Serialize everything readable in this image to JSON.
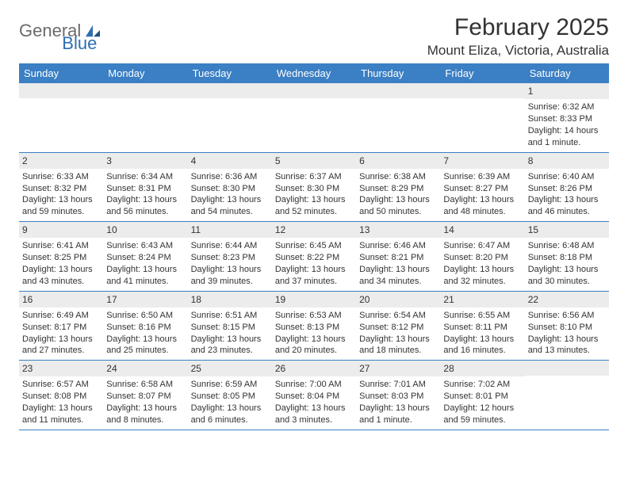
{
  "brand": {
    "part1": "General",
    "part2": "Blue"
  },
  "title": "February 2025",
  "location": "Mount Eliza, Victoria, Australia",
  "colors": {
    "header_bg": "#3b7fc4",
    "header_text": "#ffffff",
    "date_strip_bg": "#ececec",
    "text": "#333333",
    "rule": "#3b7fc4",
    "logo_gray": "#6b6b6b",
    "logo_blue": "#2f6fb0",
    "page_bg": "#ffffff"
  },
  "day_names": [
    "Sunday",
    "Monday",
    "Tuesday",
    "Wednesday",
    "Thursday",
    "Friday",
    "Saturday"
  ],
  "weeks": [
    [
      null,
      null,
      null,
      null,
      null,
      null,
      {
        "date": "1",
        "sunrise": "Sunrise: 6:32 AM",
        "sunset": "Sunset: 8:33 PM",
        "daylight": "Daylight: 14 hours and 1 minute."
      }
    ],
    [
      {
        "date": "2",
        "sunrise": "Sunrise: 6:33 AM",
        "sunset": "Sunset: 8:32 PM",
        "daylight": "Daylight: 13 hours and 59 minutes."
      },
      {
        "date": "3",
        "sunrise": "Sunrise: 6:34 AM",
        "sunset": "Sunset: 8:31 PM",
        "daylight": "Daylight: 13 hours and 56 minutes."
      },
      {
        "date": "4",
        "sunrise": "Sunrise: 6:36 AM",
        "sunset": "Sunset: 8:30 PM",
        "daylight": "Daylight: 13 hours and 54 minutes."
      },
      {
        "date": "5",
        "sunrise": "Sunrise: 6:37 AM",
        "sunset": "Sunset: 8:30 PM",
        "daylight": "Daylight: 13 hours and 52 minutes."
      },
      {
        "date": "6",
        "sunrise": "Sunrise: 6:38 AM",
        "sunset": "Sunset: 8:29 PM",
        "daylight": "Daylight: 13 hours and 50 minutes."
      },
      {
        "date": "7",
        "sunrise": "Sunrise: 6:39 AM",
        "sunset": "Sunset: 8:27 PM",
        "daylight": "Daylight: 13 hours and 48 minutes."
      },
      {
        "date": "8",
        "sunrise": "Sunrise: 6:40 AM",
        "sunset": "Sunset: 8:26 PM",
        "daylight": "Daylight: 13 hours and 46 minutes."
      }
    ],
    [
      {
        "date": "9",
        "sunrise": "Sunrise: 6:41 AM",
        "sunset": "Sunset: 8:25 PM",
        "daylight": "Daylight: 13 hours and 43 minutes."
      },
      {
        "date": "10",
        "sunrise": "Sunrise: 6:43 AM",
        "sunset": "Sunset: 8:24 PM",
        "daylight": "Daylight: 13 hours and 41 minutes."
      },
      {
        "date": "11",
        "sunrise": "Sunrise: 6:44 AM",
        "sunset": "Sunset: 8:23 PM",
        "daylight": "Daylight: 13 hours and 39 minutes."
      },
      {
        "date": "12",
        "sunrise": "Sunrise: 6:45 AM",
        "sunset": "Sunset: 8:22 PM",
        "daylight": "Daylight: 13 hours and 37 minutes."
      },
      {
        "date": "13",
        "sunrise": "Sunrise: 6:46 AM",
        "sunset": "Sunset: 8:21 PM",
        "daylight": "Daylight: 13 hours and 34 minutes."
      },
      {
        "date": "14",
        "sunrise": "Sunrise: 6:47 AM",
        "sunset": "Sunset: 8:20 PM",
        "daylight": "Daylight: 13 hours and 32 minutes."
      },
      {
        "date": "15",
        "sunrise": "Sunrise: 6:48 AM",
        "sunset": "Sunset: 8:18 PM",
        "daylight": "Daylight: 13 hours and 30 minutes."
      }
    ],
    [
      {
        "date": "16",
        "sunrise": "Sunrise: 6:49 AM",
        "sunset": "Sunset: 8:17 PM",
        "daylight": "Daylight: 13 hours and 27 minutes."
      },
      {
        "date": "17",
        "sunrise": "Sunrise: 6:50 AM",
        "sunset": "Sunset: 8:16 PM",
        "daylight": "Daylight: 13 hours and 25 minutes."
      },
      {
        "date": "18",
        "sunrise": "Sunrise: 6:51 AM",
        "sunset": "Sunset: 8:15 PM",
        "daylight": "Daylight: 13 hours and 23 minutes."
      },
      {
        "date": "19",
        "sunrise": "Sunrise: 6:53 AM",
        "sunset": "Sunset: 8:13 PM",
        "daylight": "Daylight: 13 hours and 20 minutes."
      },
      {
        "date": "20",
        "sunrise": "Sunrise: 6:54 AM",
        "sunset": "Sunset: 8:12 PM",
        "daylight": "Daylight: 13 hours and 18 minutes."
      },
      {
        "date": "21",
        "sunrise": "Sunrise: 6:55 AM",
        "sunset": "Sunset: 8:11 PM",
        "daylight": "Daylight: 13 hours and 16 minutes."
      },
      {
        "date": "22",
        "sunrise": "Sunrise: 6:56 AM",
        "sunset": "Sunset: 8:10 PM",
        "daylight": "Daylight: 13 hours and 13 minutes."
      }
    ],
    [
      {
        "date": "23",
        "sunrise": "Sunrise: 6:57 AM",
        "sunset": "Sunset: 8:08 PM",
        "daylight": "Daylight: 13 hours and 11 minutes."
      },
      {
        "date": "24",
        "sunrise": "Sunrise: 6:58 AM",
        "sunset": "Sunset: 8:07 PM",
        "daylight": "Daylight: 13 hours and 8 minutes."
      },
      {
        "date": "25",
        "sunrise": "Sunrise: 6:59 AM",
        "sunset": "Sunset: 8:05 PM",
        "daylight": "Daylight: 13 hours and 6 minutes."
      },
      {
        "date": "26",
        "sunrise": "Sunrise: 7:00 AM",
        "sunset": "Sunset: 8:04 PM",
        "daylight": "Daylight: 13 hours and 3 minutes."
      },
      {
        "date": "27",
        "sunrise": "Sunrise: 7:01 AM",
        "sunset": "Sunset: 8:03 PM",
        "daylight": "Daylight: 13 hours and 1 minute."
      },
      {
        "date": "28",
        "sunrise": "Sunrise: 7:02 AM",
        "sunset": "Sunset: 8:01 PM",
        "daylight": "Daylight: 12 hours and 59 minutes."
      },
      null
    ]
  ]
}
